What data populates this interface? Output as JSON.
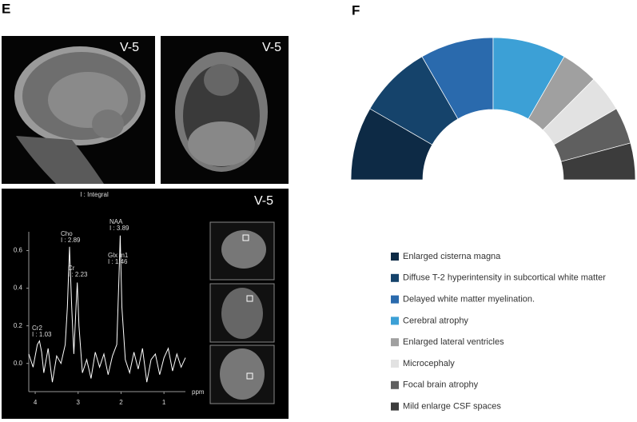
{
  "panel_labels": {
    "left": "E",
    "right": "F"
  },
  "image_tags": [
    "V-5",
    "V-5",
    "V-5"
  ],
  "chart_data": [
    {
      "type": "line",
      "title": "I : Integral",
      "xlabel": "ppm",
      "x": [
        4.15,
        4.05,
        3.95,
        3.9,
        3.85,
        3.8,
        3.7,
        3.6,
        3.5,
        3.4,
        3.3,
        3.25,
        3.2,
        3.15,
        3.1,
        3.05,
        3.02,
        2.98,
        2.9,
        2.8,
        2.7,
        2.6,
        2.5,
        2.4,
        2.3,
        2.2,
        2.1,
        2.05,
        2.02,
        1.98,
        1.9,
        1.8,
        1.7,
        1.6,
        1.5,
        1.4,
        1.3,
        1.2,
        1.1,
        1.0,
        0.9,
        0.8,
        0.7,
        0.6,
        0.5
      ],
      "values": [
        0.05,
        -0.02,
        0.1,
        0.12,
        0.06,
        -0.05,
        0.08,
        -0.1,
        0.04,
        0.0,
        0.1,
        0.3,
        0.62,
        0.3,
        0.05,
        0.3,
        0.43,
        0.2,
        -0.05,
        0.02,
        -0.08,
        0.06,
        -0.02,
        0.05,
        -0.06,
        0.04,
        0.1,
        0.45,
        0.68,
        0.3,
        0.02,
        -0.05,
        0.06,
        -0.03,
        0.08,
        -0.1,
        0.02,
        0.05,
        -0.06,
        0.03,
        0.08,
        -0.04,
        0.05,
        -0.02,
        0.03
      ],
      "color": "#ffffff",
      "xlim": [
        4.15,
        0.5
      ],
      "ylim": [
        -0.15,
        0.7
      ],
      "xticks": [
        4,
        3,
        2,
        1
      ],
      "yticks": [
        0.6,
        0.4,
        0.2,
        {
          "value": 0,
          "label": "0.0"
        }
      ],
      "annotations": [
        {
          "label": "Cho",
          "integral": "I : 2.89"
        },
        {
          "label": "Cr",
          "integral": "I : 2.23"
        },
        {
          "label": "NAA",
          "integral": "I : 3.89"
        },
        {
          "label": "Glx m1",
          "integral": "I : 1.46"
        },
        {
          "label": "Cr2",
          "integral": "I : 1.03"
        }
      ]
    },
    {
      "type": "pie",
      "donut": true,
      "half": true,
      "categories": [
        "Enlarged cisterna magna",
        "Diffuse T-2 hyperintensity in subcortical white matter",
        "Delayed white matter myelination.",
        "Cerebral atrophy",
        "Enlarged lateral ventricles",
        "Microcephaly",
        "Focal brain atrophy",
        "Mild enlarge CSF spaces"
      ],
      "values": [
        2,
        2,
        2,
        2,
        1,
        1,
        1,
        1
      ],
      "colors": [
        "#0d2a45",
        "#15436b",
        "#2a6aad",
        "#3ca0d6",
        "#a0a0a0",
        "#e2e2e2",
        "#5f5f5f",
        "#3c3c3c"
      ],
      "legend": "bottom"
    }
  ]
}
